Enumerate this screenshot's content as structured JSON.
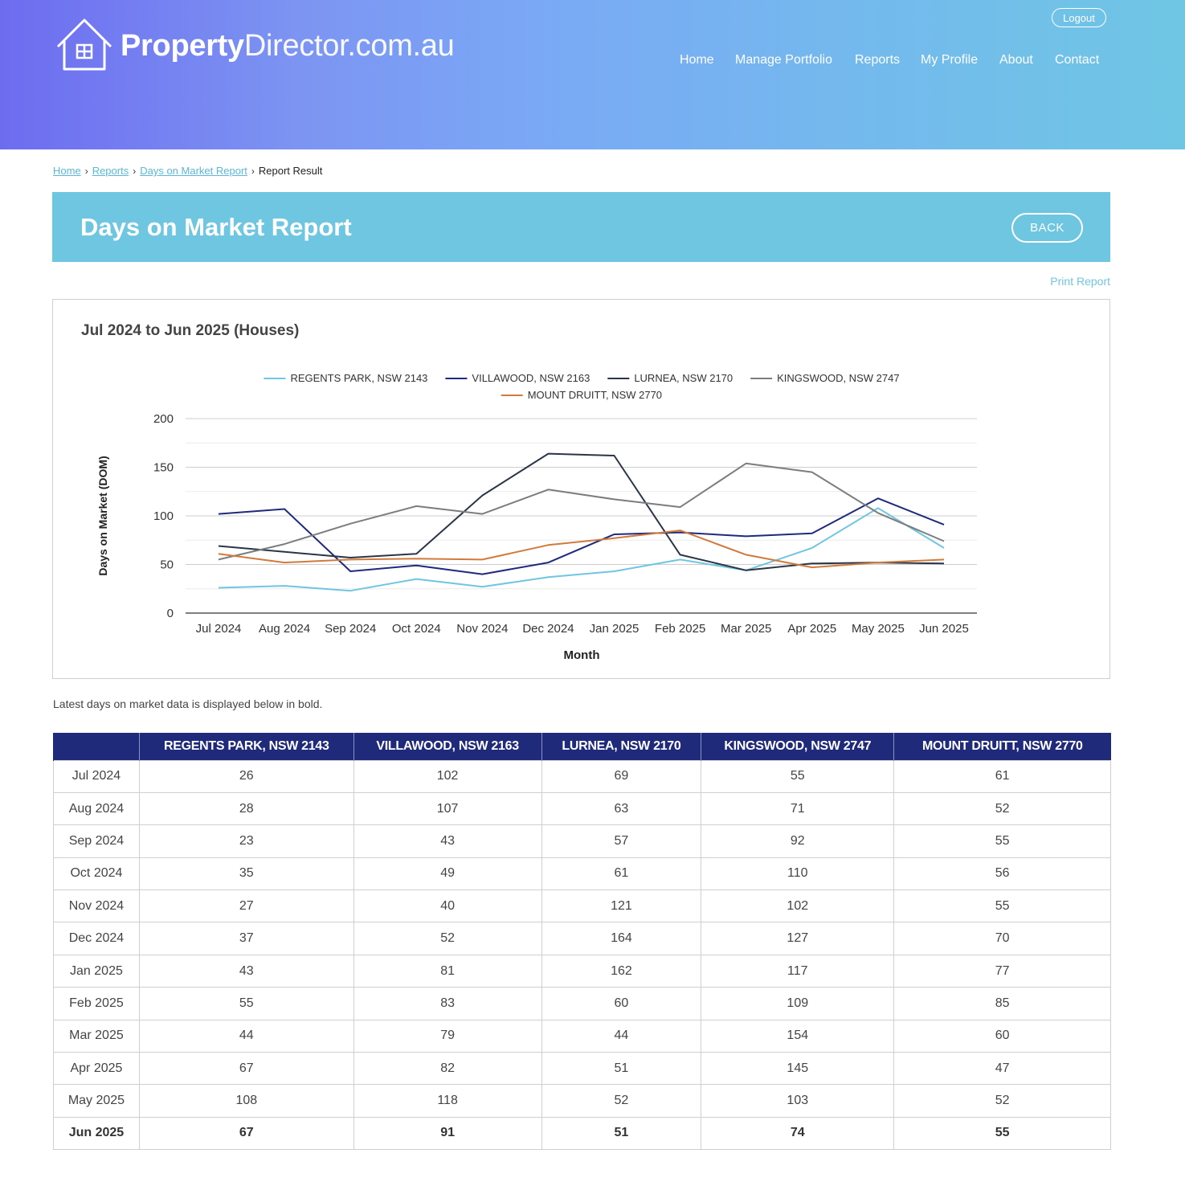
{
  "header": {
    "logo_strong": "Property",
    "logo_light": "Director.com.au",
    "logout_label": "Logout",
    "nav": [
      {
        "label": "Home"
      },
      {
        "label": "Manage Portfolio"
      },
      {
        "label": "Reports"
      },
      {
        "label": "My Profile"
      },
      {
        "label": "About"
      },
      {
        "label": "Contact"
      }
    ]
  },
  "breadcrumb": {
    "items": [
      "Home",
      "Reports",
      "Days on Market Report"
    ],
    "current": "Report Result"
  },
  "banner": {
    "title": "Days on Market Report",
    "back_label": "BACK"
  },
  "print_label": "Print Report",
  "chart_data": {
    "type": "line",
    "title": "Jul 2024 to Jun 2025 (Houses)",
    "xlabel": "Month",
    "ylabel": "Days on Market (DOM)",
    "ylim": [
      0,
      200
    ],
    "yticks": [
      0,
      50,
      100,
      150,
      200
    ],
    "grid": true,
    "legend_position": "top",
    "categories": [
      "Jul 2024",
      "Aug 2024",
      "Sep 2024",
      "Oct 2024",
      "Nov 2024",
      "Dec 2024",
      "Jan 2025",
      "Feb 2025",
      "Mar 2025",
      "Apr 2025",
      "May 2025",
      "Jun 2025"
    ],
    "series": [
      {
        "name": "REGENTS PARK, NSW 2143",
        "color": "#6ec6e0",
        "values": [
          26,
          28,
          23,
          35,
          27,
          37,
          43,
          55,
          44,
          67,
          108,
          67
        ]
      },
      {
        "name": "VILLAWOOD, NSW 2163",
        "color": "#1f2a7a",
        "values": [
          102,
          107,
          43,
          49,
          40,
          52,
          81,
          83,
          79,
          82,
          118,
          91
        ]
      },
      {
        "name": "LURNEA, NSW 2170",
        "color": "#2b3548",
        "values": [
          69,
          63,
          57,
          61,
          121,
          164,
          162,
          60,
          44,
          51,
          52,
          51
        ]
      },
      {
        "name": "KINGSWOOD, NSW 2747",
        "color": "#7a7e7f",
        "values": [
          55,
          71,
          92,
          110,
          102,
          127,
          117,
          109,
          154,
          145,
          103,
          74
        ]
      },
      {
        "name": "MOUNT DRUITT, NSW 2770",
        "color": "#d07a3c",
        "values": [
          61,
          52,
          55,
          56,
          55,
          70,
          77,
          85,
          60,
          47,
          52,
          55
        ]
      }
    ]
  },
  "note": "Latest days on market data is displayed below in bold.",
  "table": {
    "headers": [
      "",
      "REGENTS PARK, NSW 2143",
      "VILLAWOOD, NSW 2163",
      "LURNEA, NSW 2170",
      "KINGSWOOD, NSW 2747",
      "MOUNT DRUITT, NSW 2770"
    ],
    "rows": [
      [
        "Jul 2024",
        "26",
        "102",
        "69",
        "55",
        "61"
      ],
      [
        "Aug 2024",
        "28",
        "107",
        "63",
        "71",
        "52"
      ],
      [
        "Sep 2024",
        "23",
        "43",
        "57",
        "92",
        "55"
      ],
      [
        "Oct 2024",
        "35",
        "49",
        "61",
        "110",
        "56"
      ],
      [
        "Nov 2024",
        "27",
        "40",
        "121",
        "102",
        "55"
      ],
      [
        "Dec 2024",
        "37",
        "52",
        "164",
        "127",
        "70"
      ],
      [
        "Jan 2025",
        "43",
        "81",
        "162",
        "117",
        "77"
      ],
      [
        "Feb 2025",
        "55",
        "83",
        "60",
        "109",
        "85"
      ],
      [
        "Mar 2025",
        "44",
        "79",
        "44",
        "154",
        "60"
      ],
      [
        "Apr 2025",
        "67",
        "82",
        "51",
        "145",
        "47"
      ],
      [
        "May 2025",
        "108",
        "118",
        "52",
        "103",
        "52"
      ],
      [
        "Jun 2025",
        "67",
        "91",
        "51",
        "74",
        "55"
      ]
    ],
    "bold_row_index": 11
  }
}
